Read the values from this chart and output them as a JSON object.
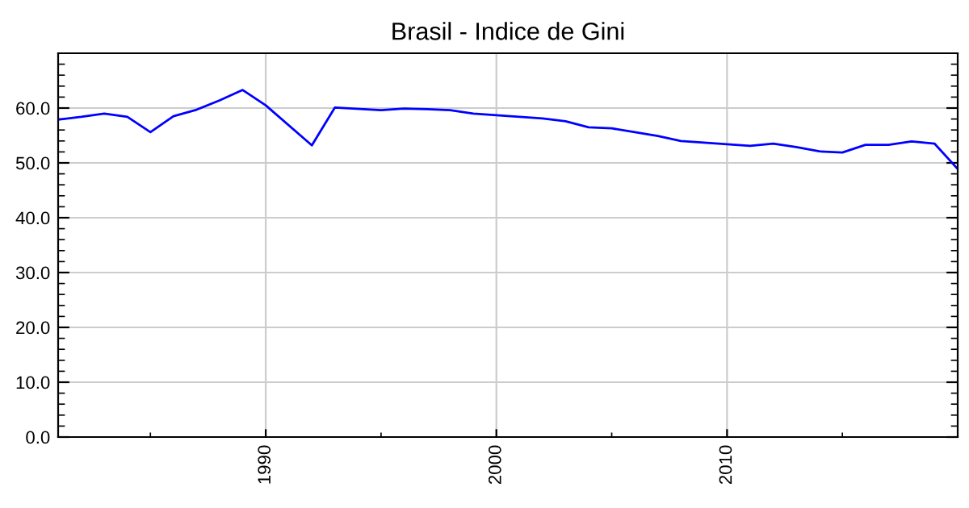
{
  "chart_data": {
    "type": "line",
    "title": "Brasil - Indice de Gini",
    "x": [
      1981,
      1982,
      1983,
      1984,
      1985,
      1986,
      1987,
      1988,
      1989,
      1990,
      1992,
      1993,
      1995,
      1996,
      1997,
      1998,
      1999,
      2001,
      2002,
      2003,
      2004,
      2005,
      2006,
      2007,
      2008,
      2009,
      2011,
      2012,
      2013,
      2014,
      2015,
      2016,
      2017,
      2018,
      2019,
      2020
    ],
    "series": [
      {
        "color": "#0000ff",
        "values": [
          57.9,
          58.4,
          59.0,
          58.4,
          55.6,
          58.5,
          59.7,
          61.4,
          63.3,
          60.5,
          53.2,
          60.1,
          59.6,
          59.9,
          59.8,
          59.6,
          59.0,
          58.4,
          58.1,
          57.6,
          56.5,
          56.3,
          55.6,
          54.9,
          54.0,
          53.7,
          53.1,
          53.5,
          52.9,
          52.1,
          51.9,
          53.3,
          53.3,
          53.9,
          53.5,
          48.9
        ]
      }
    ],
    "xlim": [
      1981,
      2020
    ],
    "xticks": [
      1990,
      2000,
      2010
    ],
    "ylim": [
      0,
      70
    ],
    "yticks": [
      {
        "value": 0,
        "label": "0.0"
      },
      {
        "value": 10,
        "label": "10.0"
      },
      {
        "value": 20,
        "label": "20.0"
      },
      {
        "value": 30,
        "label": "30.0"
      },
      {
        "value": 40,
        "label": "40.0"
      },
      {
        "value": 50,
        "label": "50.0"
      },
      {
        "value": 60,
        "label": "60.0"
      }
    ],
    "grid": true,
    "marker": "none",
    "line_style": "solid"
  }
}
